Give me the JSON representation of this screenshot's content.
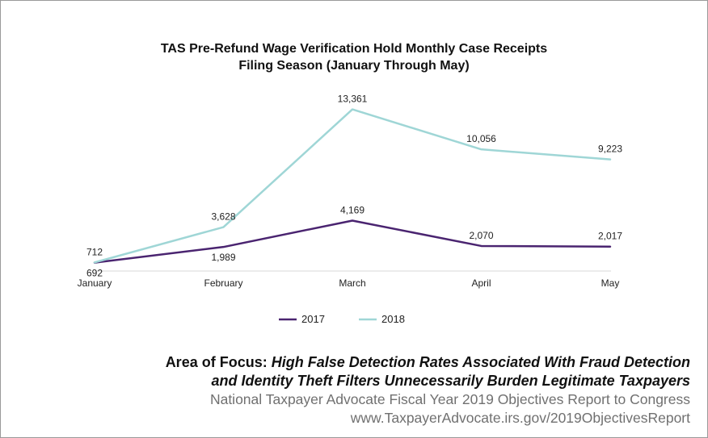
{
  "chart_data": {
    "type": "line",
    "title": "TAS Pre-Refund Wage Verification Hold Monthly Case Receipts",
    "subtitle": "Filing Season (January Through May)",
    "categories": [
      "January",
      "February",
      "March",
      "April",
      "May"
    ],
    "series": [
      {
        "name": "2017",
        "color": "#4a2470",
        "values": [
          692,
          1989,
          4169,
          2070,
          2017
        ],
        "labels": [
          "692",
          "1,989",
          "4,169",
          "2,070",
          "2,017"
        ]
      },
      {
        "name": "2018",
        "color": "#9fd6d6",
        "values": [
          712,
          3628,
          13361,
          10056,
          9223
        ],
        "labels": [
          "712",
          "3,628",
          "13,361",
          "10,056",
          "9,223"
        ]
      }
    ],
    "xlabel": "",
    "ylabel": "",
    "ylim": [
      0,
      16000
    ],
    "grid": false,
    "legend": "bottom"
  },
  "footer": {
    "area_label": "Area of Focus:",
    "area_text_1": "High False Detection Rates Associated With Fraud Detection",
    "area_text_2": "and Identity Theft Filters Unnecessarily Burden Legitimate Taxpayers",
    "report": "National Taxpayer Advocate Fiscal Year 2019 Objectives Report to Congress",
    "url": "www.TaxpayerAdvocate.irs.gov/2019ObjectivesReport"
  }
}
